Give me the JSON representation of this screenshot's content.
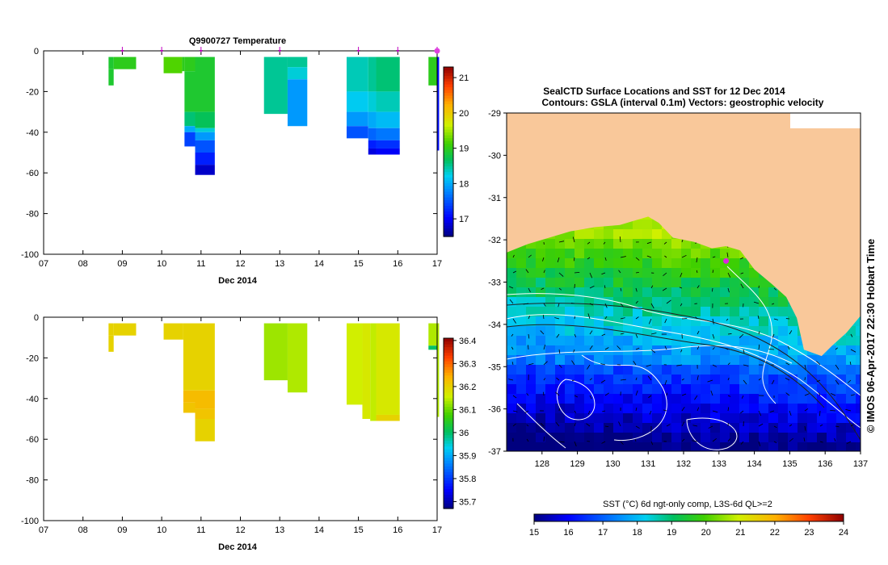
{
  "chart_data": [
    {
      "type": "heatmap",
      "title": "Q9900727  Temperature",
      "xlabel": "Dec 2014",
      "ylabel": "",
      "x_ticks": [
        "07",
        "08",
        "09",
        "10",
        "11",
        "12",
        "13",
        "14",
        "15",
        "16",
        "17"
      ],
      "xlim": [
        7,
        17
      ],
      "ylim": [
        -100,
        0
      ],
      "y_ticks": [
        "0",
        "-20",
        "-40",
        "-60",
        "-80",
        "-100"
      ],
      "colorbar": {
        "min": 16.5,
        "max": 21.3,
        "ticks": [
          "17",
          "18",
          "19",
          "20",
          "21"
        ]
      },
      "profile_markers_day": [
        9.0,
        10.0,
        11.0,
        13.0,
        15.0,
        16.0,
        17.0
      ],
      "profiles": [
        {
          "start": 8.65,
          "end": 8.78,
          "bands": [
            [
              -3,
              -9,
              18.9
            ],
            [
              -9,
              -17,
              18.9
            ]
          ]
        },
        {
          "start": 8.78,
          "end": 9.35,
          "bands": [
            [
              -3,
              -9,
              19.0
            ]
          ]
        },
        {
          "start": 10.05,
          "end": 10.52,
          "bands": [
            [
              -3,
              -11,
              19.2
            ]
          ]
        },
        {
          "start": 10.52,
          "end": 10.58,
          "bands": [
            [
              -3,
              -10,
              19.0
            ]
          ]
        },
        {
          "start": 10.58,
          "end": 10.85,
          "bands": [
            [
              -3,
              -10,
              19.0
            ],
            [
              -10,
              -30,
              18.9
            ],
            [
              -30,
              -37,
              18.6
            ],
            [
              -37,
              -40,
              18.0
            ],
            [
              -40,
              -47,
              17.4
            ]
          ]
        },
        {
          "start": 10.85,
          "end": 11.35,
          "bands": [
            [
              -3,
              -30,
              18.9
            ],
            [
              -30,
              -38,
              18.7
            ],
            [
              -38,
              -40,
              18.3
            ],
            [
              -40,
              -44,
              17.9
            ],
            [
              -44,
              -50,
              17.5
            ],
            [
              -50,
              -56,
              17.2
            ],
            [
              -56,
              -61,
              16.8
            ]
          ]
        },
        {
          "start": 12.6,
          "end": 13.2,
          "bands": [
            [
              -3,
              -31,
              18.5
            ]
          ]
        },
        {
          "start": 13.2,
          "end": 13.7,
          "bands": [
            [
              -3,
              -8,
              18.5
            ],
            [
              -8,
              -14,
              18.3
            ],
            [
              -14,
              -37,
              17.9
            ]
          ]
        },
        {
          "start": 14.7,
          "end": 15.25,
          "bands": [
            [
              -3,
              -20,
              18.4
            ],
            [
              -20,
              -30,
              18.2
            ],
            [
              -30,
              -37,
              17.9
            ],
            [
              -37,
              -43,
              17.5
            ]
          ]
        },
        {
          "start": 15.25,
          "end": 15.45,
          "bands": [
            [
              -3,
              -20,
              18.5
            ],
            [
              -20,
              -30,
              18.3
            ],
            [
              -30,
              -38,
              18.0
            ],
            [
              -38,
              -44,
              17.6
            ],
            [
              -44,
              -48,
              17.2
            ],
            [
              -48,
              -51,
              16.9
            ]
          ]
        },
        {
          "start": 15.45,
          "end": 16.05,
          "bands": [
            [
              -3,
              -20,
              18.6
            ],
            [
              -20,
              -30,
              18.4
            ],
            [
              -30,
              -38,
              18.1
            ],
            [
              -38,
              -44,
              17.7
            ],
            [
              -44,
              -48,
              17.3
            ],
            [
              -48,
              -51,
              17.0
            ]
          ]
        },
        {
          "start": 16.78,
          "end": 17.0,
          "bands": [
            [
              -3,
              -17,
              19.0
            ]
          ]
        },
        {
          "start": 17.0,
          "end": 17.05,
          "bands": [
            [
              -3,
              -49,
              17.1
            ]
          ]
        }
      ]
    },
    {
      "type": "heatmap",
      "title": "",
      "xlabel": "Dec 2014",
      "ylabel": "",
      "x_ticks": [
        "07",
        "08",
        "09",
        "10",
        "11",
        "12",
        "13",
        "14",
        "15",
        "16",
        "17"
      ],
      "xlim": [
        7,
        17
      ],
      "ylim": [
        -100,
        0
      ],
      "y_ticks": [
        "0",
        "-20",
        "-40",
        "-60",
        "-80",
        "-100"
      ],
      "colorbar": {
        "min": 35.67,
        "max": 36.41,
        "ticks": [
          "35.7",
          "35.8",
          "35.9",
          "36",
          "36.1",
          "36.2",
          "36.3",
          "36.4"
        ]
      },
      "profiles": [
        {
          "start": 8.65,
          "end": 8.78,
          "bands": [
            [
              -3,
              -9,
              36.2
            ],
            [
              -9,
              -17,
              36.2
            ]
          ]
        },
        {
          "start": 8.78,
          "end": 9.35,
          "bands": [
            [
              -3,
              -9,
              36.2
            ]
          ]
        },
        {
          "start": 10.05,
          "end": 10.55,
          "bands": [
            [
              -3,
              -11,
              36.2
            ]
          ]
        },
        {
          "start": 10.55,
          "end": 10.85,
          "bands": [
            [
              -3,
              -36,
              36.2
            ],
            [
              -36,
              -42,
              36.23
            ],
            [
              -42,
              -47,
              36.22
            ]
          ]
        },
        {
          "start": 10.85,
          "end": 11.35,
          "bands": [
            [
              -3,
              -36,
              36.2
            ],
            [
              -36,
              -45,
              36.23
            ],
            [
              -45,
              -50,
              36.22
            ],
            [
              -50,
              -61,
              36.2
            ]
          ]
        },
        {
          "start": 12.6,
          "end": 13.2,
          "bands": [
            [
              -3,
              -31,
              36.13
            ]
          ]
        },
        {
          "start": 13.2,
          "end": 13.7,
          "bands": [
            [
              -3,
              -37,
              36.14
            ]
          ]
        },
        {
          "start": 14.7,
          "end": 15.1,
          "bands": [
            [
              -3,
              -43,
              36.16
            ]
          ]
        },
        {
          "start": 15.1,
          "end": 15.3,
          "bands": [
            [
              -3,
              -50,
              36.17
            ]
          ]
        },
        {
          "start": 15.3,
          "end": 15.45,
          "bands": [
            [
              -3,
              -51,
              36.15
            ]
          ]
        },
        {
          "start": 15.45,
          "end": 16.05,
          "bands": [
            [
              -3,
              -48,
              36.17
            ],
            [
              -48,
              -51,
              36.2
            ]
          ]
        },
        {
          "start": 16.78,
          "end": 17.0,
          "bands": [
            [
              -3,
              -14,
              36.14
            ],
            [
              -14,
              -16,
              36.0
            ]
          ]
        },
        {
          "start": 17.0,
          "end": 17.05,
          "bands": [
            [
              -3,
              -49,
              36.14
            ]
          ]
        }
      ]
    },
    {
      "type": "heatmap",
      "title": "SealCTD Surface Locations and SST for 12 Dec 2014",
      "subtitle": "Contours: GSLA (interval 0.1m) Vectors: geostrophic velocity",
      "xlabel": "",
      "ylabel": "",
      "xlim": [
        127,
        137
      ],
      "ylim": [
        -37,
        -29
      ],
      "x_ticks": [
        "128",
        "129",
        "130",
        "131",
        "132",
        "133",
        "134",
        "135",
        "136",
        "137"
      ],
      "y_ticks": [
        "-29",
        "-30",
        "-31",
        "-32",
        "-33",
        "-34",
        "-35",
        "-36",
        "-37"
      ],
      "colorbar": {
        "label": "SST (°C) 6d ngt-only comp, L3S-6d QL>=2",
        "min": 15,
        "max": 24,
        "ticks": [
          "15",
          "16",
          "17",
          "18",
          "19",
          "20",
          "21",
          "22",
          "23",
          "24"
        ]
      },
      "seal_location": {
        "lon": 133.2,
        "lat": -32.5
      },
      "coast": [
        [
          127.0,
          -32.3
        ],
        [
          127.6,
          -32.1
        ],
        [
          128.2,
          -31.95
        ],
        [
          128.8,
          -31.8
        ],
        [
          129.5,
          -31.7
        ],
        [
          130.2,
          -31.65
        ],
        [
          130.6,
          -31.55
        ],
        [
          131.0,
          -31.45
        ],
        [
          131.3,
          -31.6
        ],
        [
          131.7,
          -31.95
        ],
        [
          132.3,
          -32.05
        ],
        [
          132.8,
          -32.2
        ],
        [
          133.2,
          -32.15
        ],
        [
          133.6,
          -32.25
        ],
        [
          134.0,
          -32.7
        ],
        [
          134.5,
          -33.05
        ],
        [
          134.9,
          -33.35
        ],
        [
          135.2,
          -33.85
        ],
        [
          135.4,
          -34.6
        ],
        [
          135.9,
          -34.75
        ],
        [
          136.2,
          -34.5
        ],
        [
          136.6,
          -34.2
        ],
        [
          137.0,
          -33.8
        ]
      ],
      "watermark": "© IMOS 06-Apr-2017 22:30 Hobart Time"
    }
  ]
}
